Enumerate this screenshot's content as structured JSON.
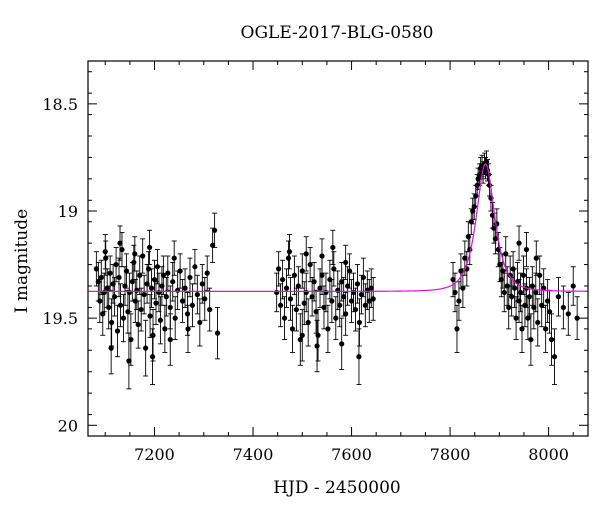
{
  "chart_data": {
    "type": "scatter",
    "title": "OGLE-2017-BLG-0580",
    "xlabel": "HJD - 2450000",
    "ylabel": "I magnitude",
    "xlim": [
      7065,
      8080
    ],
    "ylim": [
      20.05,
      18.3
    ],
    "y_inverted": true,
    "x_ticks": [
      7200,
      7400,
      7600,
      7800,
      8000
    ],
    "y_ticks": [
      18.5,
      19,
      19.5,
      20
    ],
    "y_tick_labels": [
      "18.5",
      "19",
      "19.5",
      "20"
    ],
    "grid": false,
    "legend": "none",
    "colors": {
      "points": "#000000",
      "model": "#e010e0",
      "frame": "#000000"
    },
    "series": [
      {
        "type": "scatter_with_errorbars",
        "points": [
          [
            7082,
            19.27,
            0.08
          ],
          [
            7086,
            19.33,
            0.09
          ],
          [
            7089,
            19.42,
            0.1
          ],
          [
            7092,
            19.31,
            0.08
          ],
          [
            7095,
            19.48,
            0.1
          ],
          [
            7098,
            19.38,
            0.09
          ],
          [
            7101,
            19.22,
            0.08
          ],
          [
            7104,
            19.36,
            0.09
          ],
          [
            7107,
            19.45,
            0.1
          ],
          [
            7110,
            19.29,
            0.08
          ],
          [
            7113,
            19.52,
            0.11
          ],
          [
            7116,
            19.34,
            0.09
          ],
          [
            7119,
            19.4,
            0.09
          ],
          [
            7122,
            19.25,
            0.08
          ],
          [
            7125,
            19.56,
            0.12
          ],
          [
            7128,
            19.31,
            0.09
          ],
          [
            7131,
            19.44,
            0.1
          ],
          [
            7134,
            19.18,
            0.08
          ],
          [
            7137,
            19.5,
            0.11
          ],
          [
            7140,
            19.35,
            0.09
          ],
          [
            7143,
            19.28,
            0.08
          ],
          [
            7146,
            19.47,
            0.1
          ],
          [
            7149,
            19.38,
            0.09
          ],
          [
            7152,
            19.6,
            0.12
          ],
          [
            7155,
            19.33,
            0.09
          ],
          [
            7158,
            19.24,
            0.08
          ],
          [
            7161,
            19.42,
            0.1
          ],
          [
            7164,
            19.37,
            0.09
          ],
          [
            7167,
            19.53,
            0.11
          ],
          [
            7170,
            19.3,
            0.09
          ],
          [
            7173,
            19.46,
            0.1
          ],
          [
            7176,
            19.21,
            0.08
          ],
          [
            7179,
            19.39,
            0.09
          ],
          [
            7182,
            19.64,
            0.13
          ],
          [
            7185,
            19.34,
            0.09
          ],
          [
            7188,
            19.27,
            0.08
          ],
          [
            7191,
            19.49,
            0.1
          ],
          [
            7194,
            19.36,
            0.09
          ],
          [
            7197,
            19.58,
            0.12
          ],
          [
            7200,
            19.32,
            0.09
          ],
          [
            7203,
            19.43,
            0.1
          ],
          [
            7206,
            19.26,
            0.08
          ],
          [
            7209,
            19.38,
            0.09
          ],
          [
            7212,
            19.51,
            0.11
          ],
          [
            7215,
            19.35,
            0.09
          ],
          [
            7218,
            19.3,
            0.09
          ],
          [
            7221,
            19.55,
            0.11
          ],
          [
            7224,
            19.4,
            0.09
          ],
          [
            7227,
            19.29,
            0.08
          ],
          [
            7232,
            19.45,
            0.1
          ],
          [
            7237,
            19.33,
            0.09
          ],
          [
            7242,
            19.5,
            0.1
          ],
          [
            7247,
            19.37,
            0.09
          ],
          [
            7252,
            19.28,
            0.08
          ],
          [
            7257,
            19.42,
            0.1
          ],
          [
            7262,
            19.36,
            0.09
          ],
          [
            7267,
            19.48,
            0.1
          ],
          [
            7272,
            19.31,
            0.09
          ],
          [
            7277,
            19.44,
            0.1
          ],
          [
            7282,
            19.26,
            0.08
          ],
          [
            7287,
            19.39,
            0.09
          ],
          [
            7292,
            19.52,
            0.11
          ],
          [
            7297,
            19.34,
            0.09
          ],
          [
            7302,
            19.41,
            0.1
          ],
          [
            7307,
            19.29,
            0.08
          ],
          [
            7312,
            19.46,
            0.1
          ],
          [
            7318,
            19.16,
            0.08
          ],
          [
            7322,
            19.09,
            0.08
          ],
          [
            7328,
            19.57,
            0.12
          ],
          [
            7112,
            19.64,
            0.12
          ],
          [
            7148,
            19.7,
            0.13
          ],
          [
            7196,
            19.68,
            0.13
          ],
          [
            7232,
            19.6,
            0.12
          ],
          [
            7268,
            19.55,
            0.11
          ],
          [
            7100,
            19.19,
            0.08
          ],
          [
            7130,
            19.15,
            0.08
          ],
          [
            7160,
            19.2,
            0.08
          ],
          [
            7190,
            19.17,
            0.08
          ],
          [
            7240,
            19.22,
            0.08
          ],
          [
            7448,
            19.38,
            0.09
          ],
          [
            7452,
            19.27,
            0.08
          ],
          [
            7456,
            19.44,
            0.1
          ],
          [
            7460,
            19.32,
            0.09
          ],
          [
            7464,
            19.5,
            0.1
          ],
          [
            7468,
            19.36,
            0.09
          ],
          [
            7472,
            19.22,
            0.08
          ],
          [
            7476,
            19.41,
            0.1
          ],
          [
            7480,
            19.55,
            0.11
          ],
          [
            7484,
            19.3,
            0.09
          ],
          [
            7488,
            19.46,
            0.1
          ],
          [
            7492,
            19.35,
            0.09
          ],
          [
            7496,
            19.6,
            0.12
          ],
          [
            7500,
            19.28,
            0.08
          ],
          [
            7504,
            19.43,
            0.1
          ],
          [
            7508,
            19.38,
            0.09
          ],
          [
            7512,
            19.52,
            0.11
          ],
          [
            7516,
            19.25,
            0.08
          ],
          [
            7520,
            19.4,
            0.09
          ],
          [
            7524,
            19.33,
            0.09
          ],
          [
            7528,
            19.47,
            0.1
          ],
          [
            7532,
            19.58,
            0.12
          ],
          [
            7536,
            19.36,
            0.09
          ],
          [
            7540,
            19.3,
            0.09
          ],
          [
            7544,
            19.45,
            0.1
          ],
          [
            7548,
            19.38,
            0.09
          ],
          [
            7552,
            19.55,
            0.11
          ],
          [
            7556,
            19.32,
            0.09
          ],
          [
            7560,
            19.42,
            0.1
          ],
          [
            7564,
            19.27,
            0.08
          ],
          [
            7568,
            19.5,
            0.1
          ],
          [
            7572,
            19.37,
            0.09
          ],
          [
            7576,
            19.44,
            0.1
          ],
          [
            7580,
            19.33,
            0.09
          ],
          [
            7584,
            19.4,
            0.09
          ],
          [
            7588,
            19.48,
            0.1
          ],
          [
            7592,
            19.35,
            0.09
          ],
          [
            7596,
            19.28,
            0.08
          ],
          [
            7600,
            19.42,
            0.1
          ],
          [
            7604,
            19.38,
            0.09
          ],
          [
            7608,
            19.46,
            0.1
          ],
          [
            7612,
            19.34,
            0.09
          ],
          [
            7616,
            19.52,
            0.11
          ],
          [
            7620,
            19.39,
            0.09
          ],
          [
            7624,
            19.31,
            0.09
          ],
          [
            7628,
            19.44,
            0.1
          ],
          [
            7632,
            19.37,
            0.09
          ],
          [
            7636,
            19.42,
            0.1
          ],
          [
            7640,
            19.36,
            0.09
          ],
          [
            7644,
            19.41,
            0.1
          ],
          [
            7474,
            19.19,
            0.08
          ],
          [
            7508,
            19.2,
            0.08
          ],
          [
            7540,
            19.21,
            0.08
          ],
          [
            7588,
            19.24,
            0.08
          ],
          [
            7562,
            19.17,
            0.08
          ],
          [
            7530,
            19.63,
            0.12
          ],
          [
            7580,
            19.62,
            0.12
          ],
          [
            7615,
            19.68,
            0.13
          ],
          [
            7500,
            19.58,
            0.12
          ],
          [
            7806,
            19.32,
            0.08
          ],
          [
            7810,
            19.38,
            0.09
          ],
          [
            7814,
            19.55,
            0.11
          ],
          [
            7818,
            19.42,
            0.09
          ],
          [
            7822,
            19.28,
            0.08
          ],
          [
            7826,
            19.36,
            0.09
          ],
          [
            7830,
            19.22,
            0.08
          ],
          [
            7834,
            19.27,
            0.08
          ],
          [
            7837,
            19.12,
            0.07
          ],
          [
            7840,
            19.18,
            0.07
          ],
          [
            7843,
            19.05,
            0.06
          ],
          [
            7846,
            19.0,
            0.06
          ],
          [
            7849,
            18.98,
            0.06
          ],
          [
            7852,
            18.93,
            0.05
          ],
          [
            7855,
            18.88,
            0.05
          ],
          [
            7857,
            18.85,
            0.05
          ],
          [
            7860,
            18.83,
            0.05
          ],
          [
            7862,
            18.8,
            0.05
          ],
          [
            7865,
            18.79,
            0.05
          ],
          [
            7867,
            18.82,
            0.05
          ],
          [
            7870,
            18.78,
            0.05
          ],
          [
            7872,
            18.8,
            0.05
          ],
          [
            7874,
            18.77,
            0.05
          ],
          [
            7876,
            18.81,
            0.05
          ],
          [
            7878,
            18.83,
            0.05
          ],
          [
            7880,
            18.88,
            0.05
          ],
          [
            7883,
            18.94,
            0.06
          ],
          [
            7886,
            19.02,
            0.06
          ],
          [
            7889,
            19.08,
            0.07
          ],
          [
            7892,
            19.13,
            0.07
          ],
          [
            7895,
            19.06,
            0.07
          ],
          [
            7898,
            19.18,
            0.08
          ],
          [
            7901,
            19.25,
            0.08
          ],
          [
            7904,
            19.32,
            0.08
          ],
          [
            7907,
            19.28,
            0.08
          ],
          [
            7910,
            19.38,
            0.09
          ],
          [
            7913,
            19.2,
            0.08
          ],
          [
            7916,
            19.35,
            0.09
          ],
          [
            7919,
            19.45,
            0.1
          ],
          [
            7922,
            19.3,
            0.09
          ],
          [
            7925,
            19.4,
            0.09
          ],
          [
            7928,
            19.27,
            0.08
          ],
          [
            7931,
            19.36,
            0.09
          ],
          [
            7934,
            19.5,
            0.1
          ],
          [
            7937,
            19.33,
            0.09
          ],
          [
            7940,
            19.42,
            0.1
          ],
          [
            7943,
            19.38,
            0.09
          ],
          [
            7946,
            19.55,
            0.11
          ],
          [
            7949,
            19.3,
            0.09
          ],
          [
            7952,
            19.44,
            0.1
          ],
          [
            7955,
            19.36,
            0.09
          ],
          [
            7958,
            19.5,
            0.1
          ],
          [
            7961,
            19.4,
            0.09
          ],
          [
            7964,
            19.6,
            0.12
          ],
          [
            7967,
            19.35,
            0.09
          ],
          [
            7970,
            19.45,
            0.1
          ],
          [
            7974,
            19.38,
            0.09
          ],
          [
            7978,
            19.52,
            0.11
          ],
          [
            7982,
            19.3,
            0.09
          ],
          [
            7986,
            19.44,
            0.1
          ],
          [
            7990,
            19.36,
            0.09
          ],
          [
            7994,
            19.55,
            0.11
          ],
          [
            7998,
            19.42,
            0.1
          ],
          [
            8002,
            19.47,
            0.1
          ],
          [
            8006,
            19.6,
            0.12
          ],
          [
            8012,
            19.68,
            0.13
          ],
          [
            8020,
            19.4,
            0.09
          ],
          [
            8030,
            19.45,
            0.1
          ],
          [
            8040,
            19.48,
            0.1
          ],
          [
            8050,
            19.35,
            0.09
          ],
          [
            8058,
            19.5,
            0.1
          ],
          [
            7955,
            19.18,
            0.08
          ],
          [
            7975,
            19.22,
            0.08
          ],
          [
            7940,
            19.15,
            0.08
          ]
        ]
      },
      {
        "type": "model_curve",
        "baseline": 19.375,
        "peak_time": 7872,
        "peak_magnitude": 18.78,
        "t_E": 25,
        "u0": 0.82
      }
    ]
  }
}
